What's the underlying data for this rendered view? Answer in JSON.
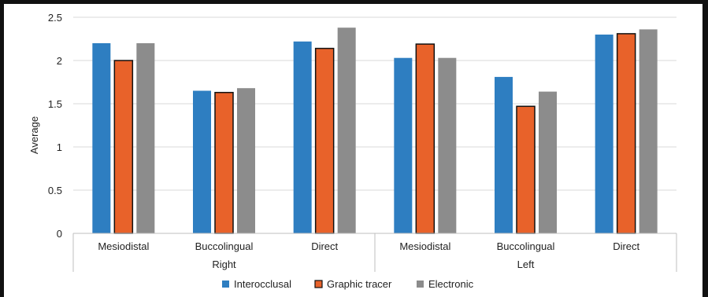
{
  "chart_data": {
    "type": "bar",
    "title": "",
    "ylabel": "Average",
    "ylim": [
      0,
      2.5
    ],
    "yticks": [
      "0",
      "0.5",
      "1",
      "1.5",
      "2",
      "2.5"
    ],
    "grid": true,
    "legend_position": "bottom",
    "categories": [
      "Mesiodistal",
      "Buccolingual",
      "Direct",
      "Mesiodistal",
      "Buccolingual",
      "Direct"
    ],
    "groups": [
      {
        "label": "Right",
        "span": [
          0,
          2
        ]
      },
      {
        "label": "Left",
        "span": [
          3,
          5
        ]
      }
    ],
    "series": [
      {
        "name": "Interocclusal",
        "color": "#2E7EC1",
        "values": [
          2.2,
          1.65,
          2.22,
          2.03,
          1.81,
          2.3
        ]
      },
      {
        "name": "Graphic tracer",
        "color": "#E8622A",
        "outline": "#111111",
        "values": [
          2.0,
          1.63,
          2.14,
          2.19,
          1.47,
          2.31
        ]
      },
      {
        "name": "Electronic",
        "color": "#8C8C8C",
        "values": [
          2.2,
          1.68,
          2.38,
          2.03,
          1.64,
          2.36
        ]
      }
    ]
  }
}
